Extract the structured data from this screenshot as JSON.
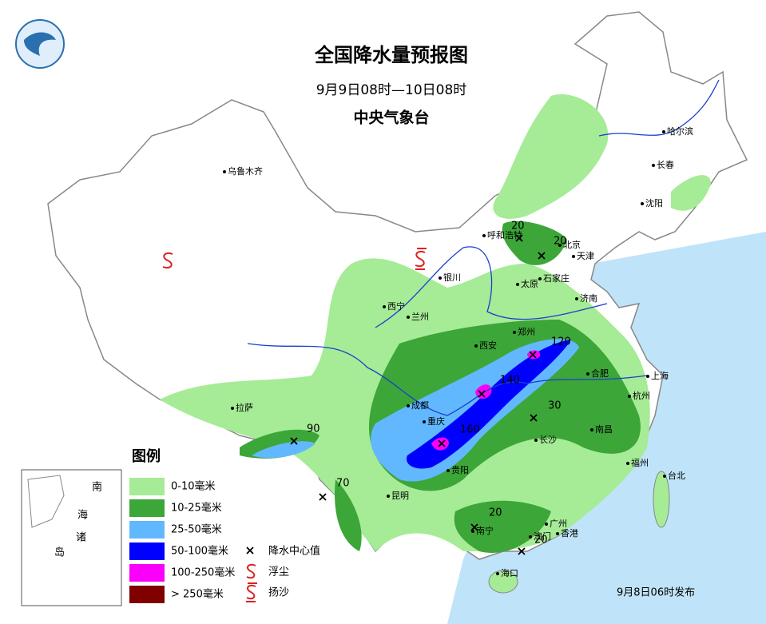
{
  "header": {
    "title": "全国降水量预报图",
    "period": "9月9日08时—10日08时",
    "issuer": "中央气象台"
  },
  "cities": [
    "乌鲁木齐",
    "哈尔滨",
    "长春",
    "沈阳",
    "呼和浩特",
    "北京",
    "天津",
    "石家庄",
    "太原",
    "银川",
    "西宁",
    "兰州",
    "济南",
    "郑州",
    "西安",
    "合肥",
    "上海",
    "杭州",
    "南昌",
    "长沙",
    "成都",
    "重庆",
    "贵阳",
    "昆明",
    "拉萨",
    "南宁",
    "广州",
    "澳门",
    "香港",
    "海口",
    "福州",
    "台北"
  ],
  "rain_centers": [
    20,
    20,
    120,
    140,
    30,
    160,
    90,
    70,
    20,
    20
  ],
  "legend": {
    "title": "图例",
    "items": [
      {
        "label": "0-10毫米",
        "color": "#a6eb96"
      },
      {
        "label": "10-25毫米",
        "color": "#3ca638"
      },
      {
        "label": "25-50毫米",
        "color": "#62b8ff"
      },
      {
        "label": "50-100毫米",
        "color": "#0000fe"
      },
      {
        "label": "100-250毫米",
        "color": "#fa00fa"
      },
      {
        "label": "> 250毫米",
        "color": "#800000"
      }
    ],
    "symbols": [
      "降水中心值",
      "浮尘",
      "扬沙"
    ]
  },
  "inset": {
    "labels": [
      "南",
      "海",
      "诸",
      "岛"
    ]
  },
  "footer": "9月8日06时发布"
}
